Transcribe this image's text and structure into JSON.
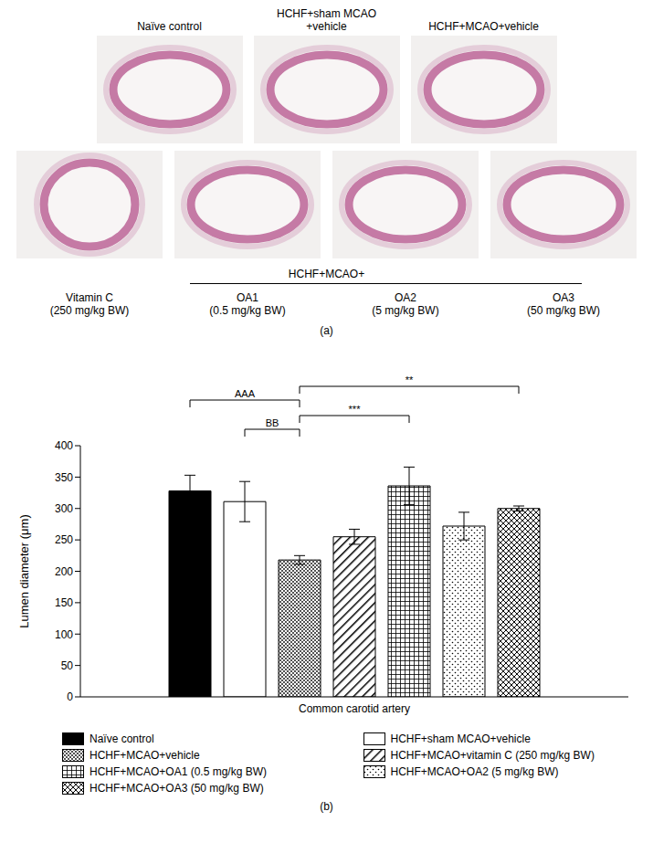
{
  "panel_labels": [
    "(a)",
    "(b)"
  ],
  "image_panel": {
    "top_row": [
      [
        "Naïve control"
      ],
      [
        "HCHF+sham MCAO",
        "+vehicle"
      ],
      [
        "HCHF+MCAO+vehicle"
      ]
    ],
    "group_title": "HCHF+MCAO+",
    "bottom_row": [
      [
        "Vitamin C",
        "(250 mg/kg BW)"
      ],
      [
        "OA1",
        "(0.5 mg/kg BW)"
      ],
      [
        "OA2",
        "(5 mg/kg BW)"
      ],
      [
        "OA3",
        "(50 mg/kg BW)"
      ]
    ]
  },
  "chart_data": {
    "type": "bar",
    "categories": [
      "Common carotid artery"
    ],
    "y_label": "Lumen diameter (μm)",
    "ylim": [
      0,
      400
    ],
    "yticks": [
      0,
      50,
      100,
      150,
      200,
      250,
      300,
      350,
      400
    ],
    "grid": false,
    "legend": "bottom",
    "series": [
      {
        "name": "Naïve control",
        "color": "#000000",
        "values": [
          328
        ],
        "errors": [
          25
        ]
      },
      {
        "name": "HCHF+sham MCAO+vehicle",
        "color": "#ffffff",
        "values": [
          311
        ],
        "errors": [
          32
        ]
      },
      {
        "name": "HCHF+MCAO+vehicle",
        "color": "#000000",
        "values": [
          218
        ],
        "errors": [
          7
        ]
      },
      {
        "name": "HCHF+MCAO+vitamin C (250 mg/kg BW)",
        "color": "#000000",
        "values": [
          255
        ],
        "errors": [
          12
        ]
      },
      {
        "name": "HCHF+MCAO+OA1 (0.5 mg/kg BW)",
        "color": "#000000",
        "values": [
          336
        ],
        "errors": [
          30
        ]
      },
      {
        "name": "HCHF+MCAO+OA2 (5 mg/kg BW)",
        "color": "#000000",
        "values": [
          272
        ],
        "errors": [
          22
        ]
      },
      {
        "name": "HCHF+MCAO+OA3 (50 mg/kg BW)",
        "color": "#000000",
        "values": [
          300
        ],
        "errors": [
          4
        ]
      }
    ],
    "annotations": [
      {
        "text": "AAA",
        "from": "Naïve control",
        "to": "HCHF+MCAO+vehicle"
      },
      {
        "text": "BB",
        "from": "HCHF+sham MCAO+vehicle",
        "to": "HCHF+MCAO+vehicle"
      },
      {
        "text": "***",
        "from": "HCHF+MCAO+vehicle",
        "to": "HCHF+MCAO+OA1 (0.5 mg/kg BW)"
      },
      {
        "text": "**",
        "from": "HCHF+MCAO+vehicle",
        "to": "HCHF+MCAO+OA3 (50 mg/kg BW)"
      }
    ]
  }
}
